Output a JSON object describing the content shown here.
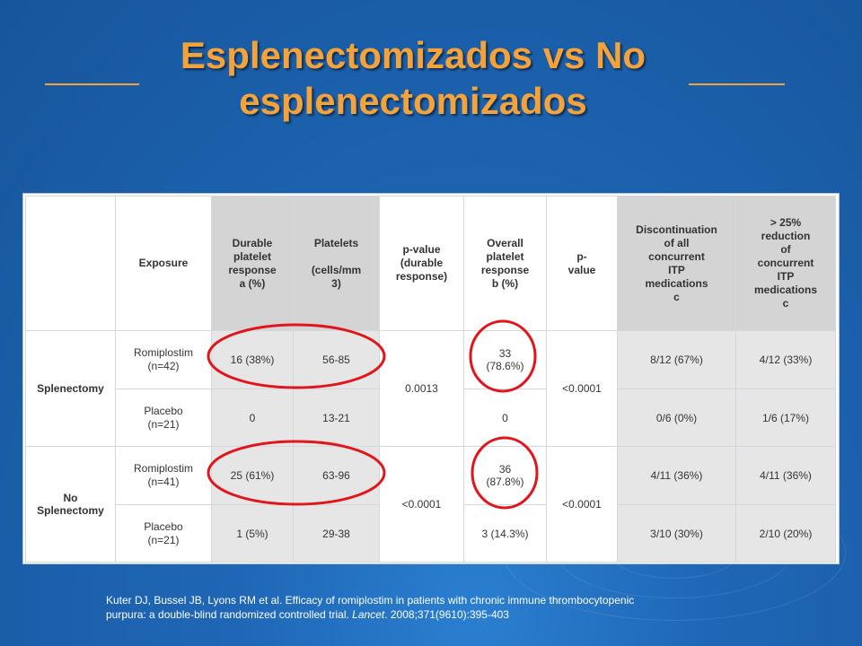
{
  "slide": {
    "title_line1": "Esplenectomizados vs No",
    "title_line2": "esplenectomizados",
    "title_color": "#f4a23c",
    "background_color": "#1a5ea8",
    "highlight_color": "#e0161b"
  },
  "table": {
    "headers": {
      "group": "",
      "exposure": "Exposure",
      "durable": "Durable\nplatelet\nresponse\na (%)",
      "platelets": "Platelets\n\n(cells/mm\n3)",
      "p_durable": "p-value\n(durable\nresponse)",
      "overall": "Overall\nplatelet\nresponse\nb (%)",
      "p_overall": "p-\nvalue",
      "discontinuation": "Discontinuation\nof all\nconcurrent\nITP\nmedications\nc",
      "reduction": "> 25%\nreduction\nof\nconcurrent\nITP\nmedications\nc"
    },
    "groups": [
      {
        "label": "Splenectomy",
        "p_durable": "0.0013",
        "p_overall": "<0.0001",
        "rows": [
          {
            "exposure": "Romiplostim\n(n=42)",
            "durable": "16 (38%)",
            "platelets": "56-85",
            "overall": "33\n(78.6%)",
            "discontinuation": "8/12 (67%)",
            "reduction": "4/12 (33%)"
          },
          {
            "exposure": "Placebo\n(n=21)",
            "durable": "0",
            "platelets": "13-21",
            "overall": "0",
            "discontinuation": "0/6 (0%)",
            "reduction": "1/6 (17%)"
          }
        ]
      },
      {
        "label": "No\nSplenectomy",
        "p_durable": "<0.0001",
        "p_overall": "<0.0001",
        "rows": [
          {
            "exposure": "Romiplostim\n(n=41)",
            "durable": "25 (61%)",
            "platelets": "63-96",
            "overall": "36\n(87.8%)",
            "discontinuation": "4/11 (36%)",
            "reduction": "4/11 (36%)"
          },
          {
            "exposure": "Placebo\n(n=21)",
            "durable": "1 (5%)",
            "platelets": "29-38",
            "overall": "3 (14.3%)",
            "discontinuation": "3/10 (30%)",
            "reduction": "2/10 (20%)"
          }
        ]
      }
    ]
  },
  "citation": {
    "line1": "Kuter DJ, Bussel JB, Lyons RM et al. Efficacy of romiplostim in patients with chronic immune thrombocytopenic",
    "line2_prefix": "purpura: a double-blind randomized controlled trial. ",
    "journal": "Lancet",
    "line2_suffix": ". 2008;371(9610):395-403"
  }
}
